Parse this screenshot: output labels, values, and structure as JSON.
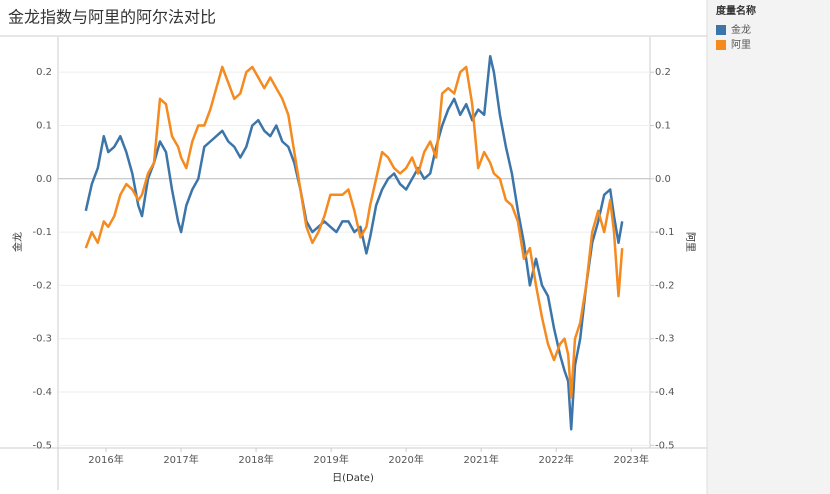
{
  "chart_data": {
    "type": "line",
    "title": "金龙指数与阿里的阿尔法对比",
    "x_label": "日(Date)",
    "y_label": "金龙",
    "y2_label": "阿里",
    "legend_title": "度量名称",
    "legend_position": "right",
    "grid": true,
    "xlim": [
      2015.36,
      2023.25
    ],
    "xticks": [
      {
        "value": 2016,
        "label": "2016年"
      },
      {
        "value": 2017,
        "label": "2017年"
      },
      {
        "value": 2018,
        "label": "2018年"
      },
      {
        "value": 2019,
        "label": "2019年"
      },
      {
        "value": 2020,
        "label": "2020年"
      },
      {
        "value": 2021,
        "label": "2021年"
      },
      {
        "value": 2022,
        "label": "2022年"
      },
      {
        "value": 2023,
        "label": "2023年"
      }
    ],
    "ylim": [
      -0.505,
      0.266
    ],
    "yticks": [
      0.2,
      0.1,
      {
        "value": 0,
        "label": "0.0"
      },
      -0.1,
      -0.2,
      -0.3,
      -0.4,
      -0.5
    ],
    "y2lim": [
      -0.505,
      0.266
    ],
    "y2ticks": [
      0.2,
      0.1,
      {
        "value": 0,
        "label": "0.0"
      },
      -0.1,
      -0.2,
      -0.3,
      -0.4,
      -0.5
    ],
    "x": [
      2015.73,
      2015.81,
      2015.89,
      2015.97,
      2016.03,
      2016.11,
      2016.19,
      2016.27,
      2016.35,
      2016.43,
      2016.48,
      2016.56,
      2016.64,
      2016.72,
      2016.8,
      2016.88,
      2016.96,
      2017.0,
      2017.07,
      2017.15,
      2017.23,
      2017.31,
      2017.39,
      2017.47,
      2017.55,
      2017.63,
      2017.71,
      2017.79,
      2017.87,
      2017.95,
      2018.03,
      2018.11,
      2018.19,
      2018.27,
      2018.35,
      2018.43,
      2018.51,
      2018.59,
      2018.67,
      2018.75,
      2018.83,
      2018.91,
      2018.99,
      2019.07,
      2019.15,
      2019.23,
      2019.31,
      2019.39,
      2019.47,
      2019.52,
      2019.6,
      2019.68,
      2019.76,
      2019.84,
      2019.92,
      2020.0,
      2020.08,
      2020.16,
      2020.24,
      2020.32,
      2020.4,
      2020.48,
      2020.56,
      2020.64,
      2020.72,
      2020.8,
      2020.88,
      2020.96,
      2021.04,
      2021.12,
      2021.17,
      2021.25,
      2021.33,
      2021.41,
      2021.49,
      2021.57,
      2021.65,
      2021.73,
      2021.81,
      2021.89,
      2021.97,
      2022.05,
      2022.11,
      2022.16,
      2022.2,
      2022.25,
      2022.32,
      2022.4,
      2022.48,
      2022.56,
      2022.64,
      2022.72,
      2022.77,
      2022.83,
      2022.88
    ],
    "series": [
      {
        "name": "金龙",
        "color": "#3c75a9",
        "axis": "y",
        "values": [
          -0.06,
          -0.01,
          0.02,
          0.08,
          0.05,
          0.06,
          0.08,
          0.05,
          0.01,
          -0.05,
          -0.07,
          0.0,
          0.03,
          0.07,
          0.05,
          -0.02,
          -0.08,
          -0.1,
          -0.05,
          -0.02,
          0.0,
          0.06,
          0.07,
          0.08,
          0.09,
          0.07,
          0.06,
          0.04,
          0.06,
          0.1,
          0.11,
          0.09,
          0.08,
          0.1,
          0.07,
          0.06,
          0.03,
          -0.02,
          -0.08,
          -0.1,
          -0.09,
          -0.08,
          -0.09,
          -0.1,
          -0.08,
          -0.08,
          -0.1,
          -0.09,
          -0.14,
          -0.11,
          -0.05,
          -0.02,
          0.0,
          0.01,
          -0.01,
          -0.02,
          0.0,
          0.02,
          0.0,
          0.01,
          0.06,
          0.1,
          0.13,
          0.15,
          0.12,
          0.14,
          0.11,
          0.13,
          0.12,
          0.23,
          0.2,
          0.12,
          0.06,
          0.01,
          -0.06,
          -0.12,
          -0.2,
          -0.15,
          -0.2,
          -0.22,
          -0.28,
          -0.33,
          -0.36,
          -0.38,
          -0.47,
          -0.35,
          -0.3,
          -0.2,
          -0.12,
          -0.08,
          -0.03,
          -0.02,
          -0.07,
          -0.12,
          -0.08
        ]
      },
      {
        "name": "阿里",
        "color": "#f58a1f",
        "axis": "y2",
        "values": [
          -0.13,
          -0.1,
          -0.12,
          -0.08,
          -0.09,
          -0.07,
          -0.03,
          -0.01,
          -0.02,
          -0.04,
          -0.03,
          0.01,
          0.03,
          0.15,
          0.14,
          0.08,
          0.06,
          0.04,
          0.02,
          0.07,
          0.1,
          0.1,
          0.13,
          0.17,
          0.21,
          0.18,
          0.15,
          0.16,
          0.2,
          0.21,
          0.19,
          0.17,
          0.19,
          0.17,
          0.15,
          0.12,
          0.05,
          -0.02,
          -0.09,
          -0.12,
          -0.1,
          -0.07,
          -0.03,
          -0.03,
          -0.03,
          -0.02,
          -0.06,
          -0.11,
          -0.09,
          -0.05,
          0.0,
          0.05,
          0.04,
          0.02,
          0.01,
          0.02,
          0.04,
          0.01,
          0.05,
          0.07,
          0.04,
          0.16,
          0.17,
          0.16,
          0.2,
          0.21,
          0.14,
          0.02,
          0.05,
          0.03,
          0.01,
          0.0,
          -0.04,
          -0.05,
          -0.08,
          -0.15,
          -0.13,
          -0.2,
          -0.26,
          -0.31,
          -0.34,
          -0.31,
          -0.3,
          -0.33,
          -0.41,
          -0.3,
          -0.27,
          -0.2,
          -0.1,
          -0.06,
          -0.1,
          -0.04,
          -0.1,
          -0.22,
          -0.13
        ]
      }
    ]
  }
}
